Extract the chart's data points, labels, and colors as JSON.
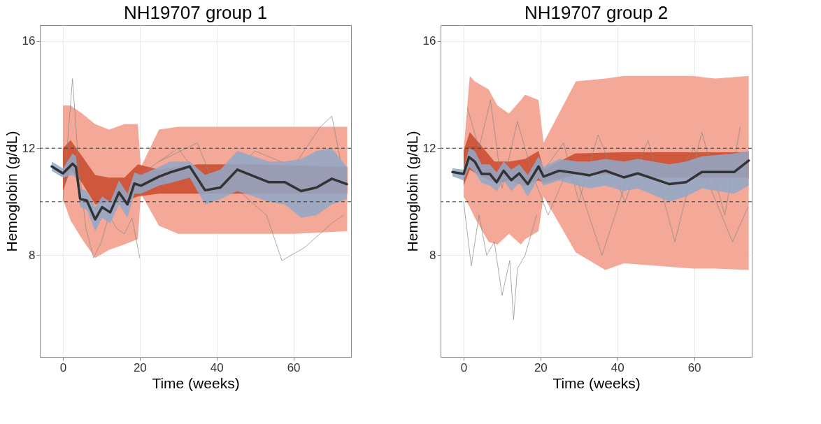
{
  "chart_data": [
    {
      "type": "line",
      "title": "NH19707 group 1",
      "xlabel": "Time (weeks)",
      "ylabel": "Hemoglobin (g/dL)",
      "xlim": [
        -6,
        75
      ],
      "ylim": [
        4.2,
        16.6
      ],
      "xticks": [
        0,
        20,
        40,
        60
      ],
      "yticks": [
        8,
        12,
        16
      ],
      "grid": true,
      "line_style": "solid",
      "ref_lines": [
        {
          "axis": "y",
          "value": 12,
          "line_style": "dashed",
          "color": "#333333"
        },
        {
          "axis": "y",
          "value": 10,
          "line_style": "dashed",
          "color": "#333333"
        }
      ],
      "series": [
        {
          "type": "area",
          "color": "#f4a898",
          "x": [
            0,
            2,
            5,
            8.4,
            12,
            16,
            19.5,
            20.3,
            25,
            30,
            40,
            50,
            60,
            74
          ],
          "values": [
            null,
            null,
            null,
            null,
            null,
            null,
            null,
            null,
            null,
            null,
            null,
            null,
            null,
            null
          ],
          "lower": [
            10.1,
            9.3,
            8.6,
            7.9,
            8.2,
            8.4,
            8.6,
            10.3,
            9.1,
            8.8,
            8.8,
            8.8,
            8.8,
            8.9
          ],
          "upper": [
            13.6,
            13.6,
            13.3,
            12.9,
            12.7,
            12.9,
            12.9,
            11.3,
            12.7,
            12.8,
            12.8,
            12.8,
            12.8,
            12.8
          ]
        },
        {
          "type": "area",
          "color": "#c8492c",
          "x": [
            0,
            2,
            5,
            8.4,
            12,
            16,
            19.5,
            25,
            35,
            50,
            74
          ],
          "values": [
            null,
            null,
            null,
            null,
            null,
            null,
            null,
            null,
            null,
            null,
            null
          ],
          "lower": [
            10.4,
            11.2,
            10.7,
            9.9,
            10.0,
            10.0,
            10.2,
            10.3,
            10.3,
            10.3,
            10.3
          ],
          "upper": [
            12.0,
            12.3,
            11.7,
            11.0,
            10.9,
            10.9,
            11.4,
            11.2,
            11.4,
            11.4,
            11.3
          ]
        },
        {
          "color": "#888888",
          "x": [
            0,
            2.5,
            4,
            6,
            8,
            10,
            12,
            14,
            16,
            18,
            20
          ],
          "values": [
            10.0,
            14.6,
            11.5,
            9.0,
            7.9,
            8.5,
            9.5,
            9.0,
            8.8,
            9.4,
            7.9
          ]
        },
        {
          "color": "#888888",
          "x": [
            20,
            30,
            35,
            45,
            53,
            57,
            63,
            70,
            73
          ],
          "values": [
            11.0,
            12.0,
            11.0,
            10.5,
            9.5,
            7.8,
            8.3,
            9.2,
            9.5
          ]
        },
        {
          "color": "#888888",
          "x": [
            25,
            35,
            40,
            50,
            60,
            67,
            70,
            73
          ],
          "values": [
            11.5,
            12.2,
            10.4,
            11.9,
            11.3,
            12.8,
            13.2,
            11.0
          ]
        },
        {
          "type": "area",
          "color": "#8fa8c8",
          "x": [
            -2.9,
            0,
            2.5,
            3.4,
            4.5,
            6.2,
            8.4,
            10.2,
            12.3,
            14.6,
            16.8,
            18.6,
            20.3,
            25,
            28,
            33,
            37,
            41,
            45.4,
            53.6,
            57.8,
            62,
            66,
            70,
            73.9
          ],
          "values": [
            null,
            null,
            null,
            null,
            null,
            null,
            null,
            null,
            null,
            null,
            null,
            null,
            null,
            null,
            null,
            null,
            null,
            null,
            null,
            null,
            null,
            null,
            null,
            null,
            null
          ],
          "lower": [
            11.15,
            10.9,
            11.0,
            10.9,
            9.8,
            9.7,
            8.9,
            9.4,
            9.2,
            9.9,
            9.4,
            10.3,
            10.3,
            10.6,
            10.7,
            10.9,
            9.9,
            10.1,
            10.4,
            10.0,
            9.9,
            9.4,
            9.5,
            9.9,
            10.1
          ],
          "upper": [
            11.5,
            11.25,
            11.8,
            11.7,
            10.5,
            10.4,
            9.8,
            10.2,
            10.0,
            10.8,
            10.3,
            11.1,
            11.0,
            11.3,
            11.5,
            11.5,
            11.0,
            11.2,
            11.9,
            11.5,
            11.5,
            11.6,
            11.9,
            12.0,
            11.3
          ]
        },
        {
          "color": "#333333",
          "x": [
            -2.9,
            0,
            2.5,
            3.4,
            4.5,
            6.2,
            8.4,
            10.2,
            12.3,
            14.6,
            16.8,
            18.6,
            20.3,
            25,
            28,
            33,
            37,
            41,
            45.4,
            53.6,
            57.8,
            62,
            66,
            70,
            73.9
          ],
          "values": [
            11.32,
            11.06,
            11.42,
            11.3,
            10.1,
            10.05,
            9.34,
            9.8,
            9.6,
            10.35,
            9.9,
            10.68,
            10.6,
            10.94,
            11.1,
            11.32,
            10.43,
            10.53,
            11.2,
            10.73,
            10.73,
            10.4,
            10.53,
            10.86,
            10.66
          ]
        }
      ]
    },
    {
      "type": "line",
      "title": "NH19707 group 2",
      "xlabel": "Time (weeks)",
      "ylabel": "Hemoglobin (g/dL)",
      "xlim": [
        -6,
        75
      ],
      "ylim": [
        4.2,
        16.6
      ],
      "xticks": [
        0,
        20,
        40,
        60
      ],
      "yticks": [
        8,
        12,
        16
      ],
      "grid": true,
      "line_style": "solid",
      "ref_lines": [
        {
          "axis": "y",
          "value": 12,
          "line_style": "dashed",
          "color": "#333333"
        },
        {
          "axis": "y",
          "value": 10,
          "line_style": "dashed",
          "color": "#333333"
        }
      ],
      "series": [
        {
          "type": "area",
          "color": "#f4a898",
          "x": [
            0,
            1.6,
            2.9,
            6.5,
            8.8,
            11.8,
            14.9,
            16,
            19.5,
            20.8,
            29.2,
            36.9,
            41.7,
            59.7,
            65.5,
            74.2
          ],
          "values": [
            null,
            null,
            null,
            null,
            null,
            null,
            null,
            null,
            null,
            null,
            null,
            null,
            null,
            null,
            null,
            null
          ],
          "lower": [
            10.2,
            9.8,
            9.4,
            8.5,
            8.4,
            8.8,
            8.4,
            8.6,
            8.9,
            10.2,
            8.1,
            7.45,
            7.7,
            7.5,
            7.5,
            7.45
          ],
          "upper": [
            11.9,
            14.7,
            14.5,
            14.2,
            13.6,
            13.3,
            13.8,
            14.0,
            13.8,
            12.2,
            14.5,
            14.6,
            14.7,
            14.7,
            14.6,
            14.7
          ]
        },
        {
          "type": "area",
          "color": "#c8492c",
          "x": [
            0,
            1.6,
            4,
            8,
            12,
            16,
            19.5,
            20.8,
            29,
            41,
            53,
            62,
            74.2
          ],
          "values": [
            null,
            null,
            null,
            null,
            null,
            null,
            null,
            null,
            null,
            null,
            null,
            null,
            null
          ],
          "lower": [
            10.6,
            11.2,
            11.0,
            10.7,
            10.8,
            10.6,
            10.8,
            10.7,
            11.0,
            11.0,
            10.9,
            10.9,
            10.9
          ],
          "upper": [
            11.9,
            12.6,
            12.2,
            11.5,
            11.5,
            11.6,
            11.9,
            11.2,
            11.8,
            11.85,
            11.85,
            11.85,
            11.85
          ]
        },
        {
          "color": "#888888",
          "x": [
            0,
            2,
            4,
            6,
            8,
            10,
            12,
            13,
            14,
            16,
            19
          ],
          "values": [
            10.0,
            7.6,
            9.5,
            8.0,
            8.5,
            6.5,
            7.8,
            5.6,
            7.5,
            8.0,
            9.5
          ]
        },
        {
          "color": "#888888",
          "x": [
            20,
            26,
            30,
            35,
            42,
            48,
            55,
            62,
            68,
            72
          ],
          "values": [
            11.0,
            12.2,
            10.0,
            12.5,
            10.0,
            12.3,
            8.5,
            12.6,
            9.5,
            12.8
          ]
        },
        {
          "color": "#888888",
          "x": [
            1,
            4,
            7,
            10,
            14,
            18,
            22,
            28,
            36,
            44,
            52,
            60,
            70,
            74
          ],
          "values": [
            13.5,
            12.0,
            13.8,
            10.5,
            13.0,
            11.0,
            9.5,
            11.5,
            8.0,
            11.5,
            10.2,
            12.0,
            8.5,
            9.8
          ]
        },
        {
          "type": "area",
          "color": "#8fa8c8",
          "x": [
            -2.9,
            0,
            1.4,
            2.9,
            4.7,
            6.8,
            8.6,
            10.4,
            12.4,
            14.5,
            16.7,
            19.5,
            20.8,
            24.9,
            29.7,
            32.8,
            36.9,
            41.7,
            45.3,
            53.6,
            57.9,
            62,
            70.4,
            74.2
          ],
          "values": [
            null,
            null,
            null,
            null,
            null,
            null,
            null,
            null,
            null,
            null,
            null,
            null,
            null,
            null,
            null,
            null,
            null,
            null,
            null,
            null,
            null,
            null,
            null,
            null
          ],
          "lower": [
            10.95,
            10.8,
            11.3,
            11.1,
            10.7,
            10.6,
            10.4,
            10.8,
            10.4,
            10.7,
            10.2,
            10.9,
            10.6,
            10.8,
            10.6,
            10.5,
            10.6,
            10.4,
            10.5,
            10.0,
            10.2,
            10.5,
            10.3,
            10.6
          ],
          "upper": [
            11.25,
            11.2,
            12.0,
            11.9,
            11.4,
            11.4,
            11.1,
            11.5,
            11.2,
            11.4,
            11.0,
            11.7,
            11.3,
            11.6,
            11.5,
            11.5,
            11.6,
            11.5,
            11.6,
            11.4,
            11.5,
            11.7,
            11.8,
            11.9
          ]
        },
        {
          "color": "#333333",
          "x": [
            -2.9,
            0,
            1.4,
            2.9,
            4.7,
            6.8,
            8.6,
            10.4,
            12.4,
            14.5,
            16.7,
            19.5,
            20.8,
            24.9,
            29.7,
            32.8,
            36.9,
            41.7,
            45.3,
            53.6,
            57.9,
            62,
            70.4,
            74.2
          ],
          "values": [
            11.11,
            11.04,
            11.67,
            11.5,
            11.04,
            11.04,
            10.73,
            11.16,
            10.81,
            11.06,
            10.66,
            11.32,
            10.94,
            11.16,
            11.06,
            10.99,
            11.16,
            10.91,
            11.06,
            10.66,
            10.73,
            11.11,
            11.11,
            11.54
          ]
        }
      ]
    }
  ]
}
